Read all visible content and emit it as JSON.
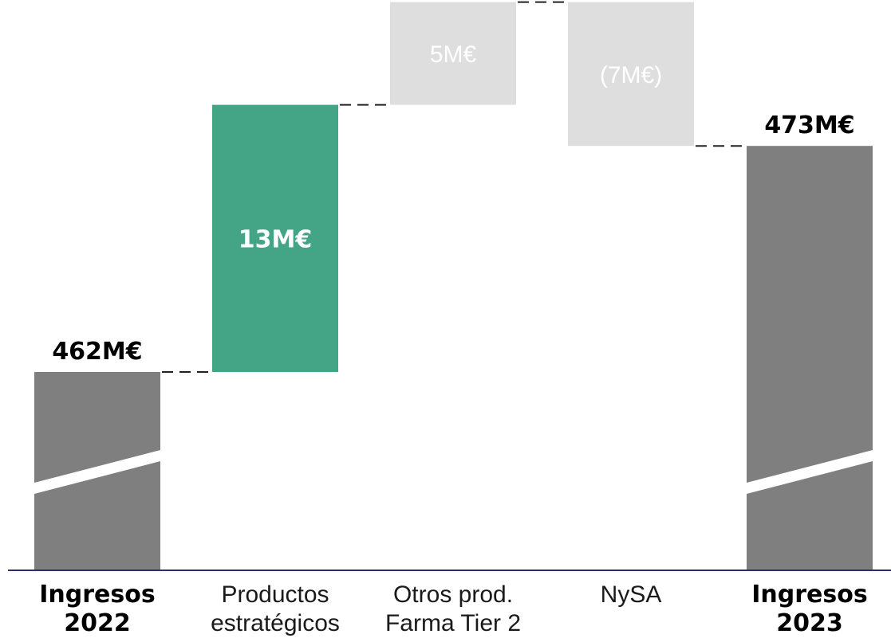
{
  "chart_data": {
    "type": "waterfall",
    "title": "",
    "xlabel": "",
    "ylabel": "",
    "unit": "M€",
    "axis_broken": true,
    "grid": false,
    "categories": [
      {
        "line1": "Ingresos",
        "line2": "2022",
        "bold": true
      },
      {
        "line1": "Productos",
        "line2": "estratégicos",
        "bold": false
      },
      {
        "line1": "Otros prod.",
        "line2": "Farma Tier 2",
        "bold": false
      },
      {
        "line1": "NySA",
        "line2": "",
        "bold": false
      },
      {
        "line1": "Ingresos",
        "line2": "2023",
        "bold": true
      }
    ],
    "bars": [
      {
        "kind": "total",
        "value": 462,
        "label": "462M€"
      },
      {
        "kind": "delta",
        "value": 13,
        "label": "13M€"
      },
      {
        "kind": "delta",
        "value": 5,
        "label": "5M€"
      },
      {
        "kind": "delta",
        "value": -7,
        "label": "(7M€)"
      },
      {
        "kind": "total",
        "value": 473,
        "label": "473M€"
      }
    ],
    "colors": {
      "total": "#7f7f7f",
      "highlight": "#43a586",
      "muted": "#dedede",
      "muted_text": "#ffffff",
      "axis": "#2e2e6e",
      "text": "#000000",
      "text_light": "#1a1a1a",
      "connector": "#222222"
    },
    "highlight_index": 1
  }
}
